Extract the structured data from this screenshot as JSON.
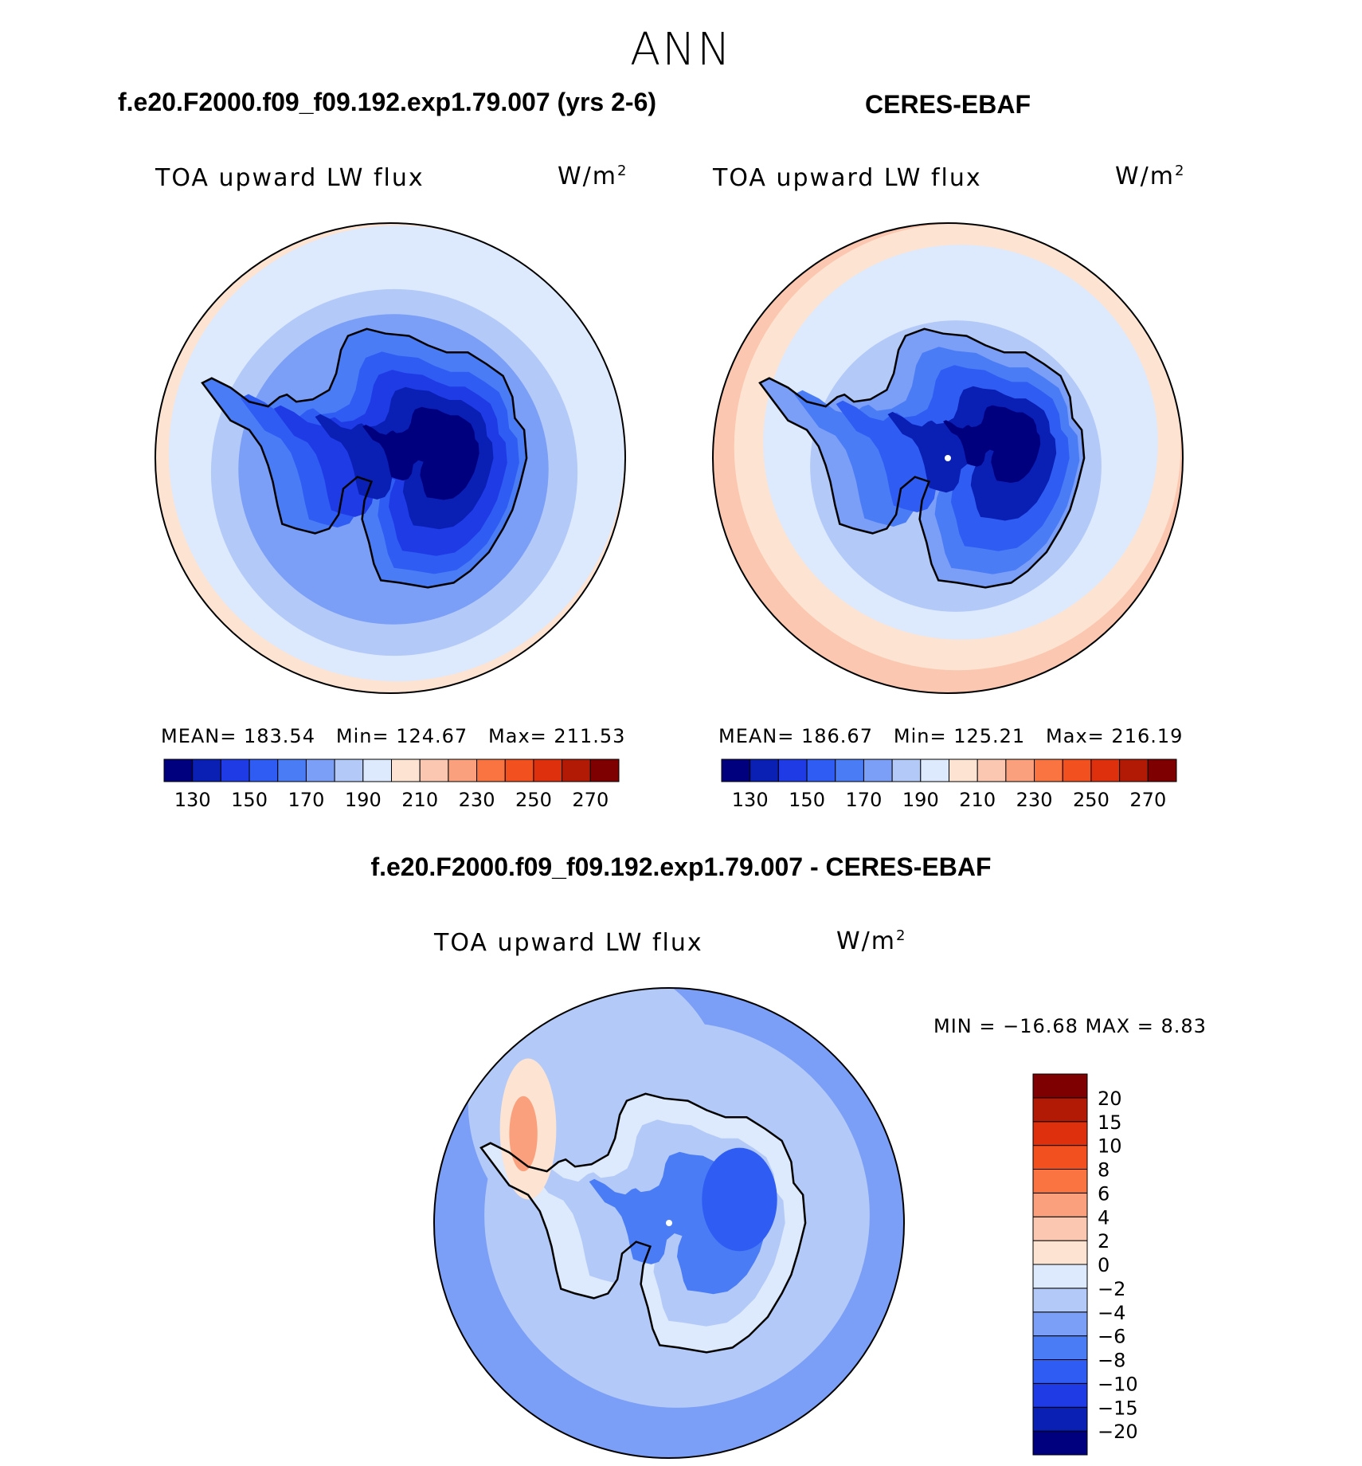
{
  "figure": {
    "season": "ANN",
    "diff_title": "f.e20.F2000.f09_f09.192.exp1.79.007 - CERES-EBAF",
    "variable": "TOA upward LW flux",
    "units": "W/m",
    "units_exp": "2"
  },
  "chart_data": [
    {
      "type": "heatmap",
      "title": "f.e20.F2000.f09_f09.192.exp1.79.007 (yrs 2-6)",
      "variable": "TOA upward LW flux",
      "units": "W/m2",
      "projection": "south polar stereographic",
      "stats": {
        "MEAN": "183.54",
        "Min": "124.67",
        "Max": "211.53"
      },
      "levels": [
        130,
        140,
        150,
        160,
        170,
        180,
        190,
        200,
        210,
        220,
        230,
        240,
        250,
        260,
        270
      ],
      "tick_labels": [
        "130",
        "150",
        "170",
        "190",
        "210",
        "230",
        "250",
        "270"
      ],
      "colors": [
        "#00007f",
        "#0a1fb4",
        "#1f3be6",
        "#2f5cf2",
        "#4a7cf5",
        "#7b9ef6",
        "#b3c9f7",
        "#dde9fd",
        "#fde4d2",
        "#fbc7b0",
        "#fba07c",
        "#f97440",
        "#f3501f",
        "#df300e",
        "#b31a06",
        "#7f0000"
      ]
    },
    {
      "type": "heatmap",
      "title": "CERES-EBAF",
      "variable": "TOA upward LW flux",
      "units": "W/m2",
      "projection": "south polar stereographic",
      "stats": {
        "MEAN": "186.67",
        "Min": "125.21",
        "Max": "216.19"
      },
      "levels": [
        130,
        140,
        150,
        160,
        170,
        180,
        190,
        200,
        210,
        220,
        230,
        240,
        250,
        260,
        270
      ],
      "tick_labels": [
        "130",
        "150",
        "170",
        "190",
        "210",
        "230",
        "250",
        "270"
      ],
      "colors": [
        "#00007f",
        "#0a1fb4",
        "#1f3be6",
        "#2f5cf2",
        "#4a7cf5",
        "#7b9ef6",
        "#b3c9f7",
        "#dde9fd",
        "#fde4d2",
        "#fbc7b0",
        "#fba07c",
        "#f97440",
        "#f3501f",
        "#df300e",
        "#b31a06",
        "#7f0000"
      ]
    },
    {
      "type": "heatmap",
      "title": "f.e20.F2000.f09_f09.192.exp1.79.007 - CERES-EBAF",
      "variable": "TOA upward LW flux",
      "units": "W/m2",
      "projection": "south polar stereographic",
      "stats_text": "MIN = −16.68 MAX =    8.83",
      "stats": {
        "MIN": -16.68,
        "MAX": 8.83
      },
      "levels": [
        -20,
        -15,
        -10,
        -8,
        -6,
        -4,
        -2,
        0,
        2,
        4,
        6,
        8,
        10,
        15,
        20
      ],
      "tick_labels": [
        "−20",
        "−15",
        "−10",
        "−8",
        "−6",
        "−4",
        "−2",
        "0",
        "2",
        "4",
        "6",
        "8",
        "10",
        "15",
        "20"
      ],
      "colors": [
        "#00007f",
        "#0a1fb4",
        "#1f3be6",
        "#2f5cf2",
        "#4a7cf5",
        "#7b9ef6",
        "#b3c9f7",
        "#dde9fd",
        "#fde4d2",
        "#fbc7b0",
        "#fba07c",
        "#f97440",
        "#f3501f",
        "#df300e",
        "#b31a06",
        "#7f0000"
      ]
    }
  ]
}
